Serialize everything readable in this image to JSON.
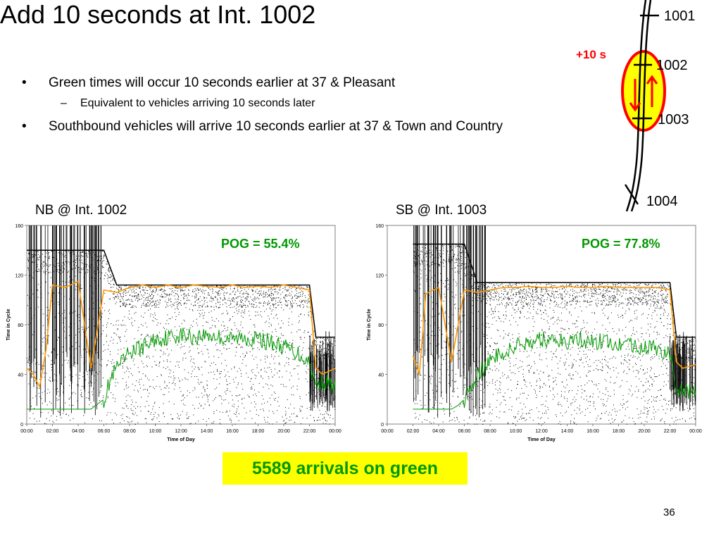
{
  "slide": {
    "title": "Add 10 seconds at Int. 1002",
    "bullets": [
      {
        "text": "Green times will occur 10 seconds earlier at 37 & Pleasant",
        "marker": "•"
      },
      {
        "text": "Equivalent to vehicles arriving 10 seconds later",
        "marker": "–"
      },
      {
        "text": "Southbound vehicles will arrive 10 seconds earlier at 37 & Town and Country",
        "marker": "•"
      }
    ],
    "arrivals_text": "5589 arrivals on green",
    "page_number": "36"
  },
  "diagram": {
    "offset_label": "+10 s",
    "intersections": [
      "1001",
      "1002",
      "1003",
      "1004"
    ],
    "colors": {
      "highlight_fill": "#ffff00",
      "highlight_stroke": "#ff0000",
      "arrow": "#ff0000"
    },
    "icons": [
      "up-arrow-icon",
      "down-arrow-icon"
    ]
  },
  "chart_data": [
    {
      "type": "scatter",
      "title": "NB @ Int. 1002",
      "annotation": "POG = 55.4%",
      "xlabel": "Time of Day",
      "ylabel": "Time in Cycle",
      "x_ticks": [
        "00:00",
        "02:00",
        "04:00",
        "06:00",
        "08:00",
        "10:00",
        "12:00",
        "14:00",
        "16:00",
        "18:00",
        "20:00",
        "22:00",
        "00:00"
      ],
      "y_ticks": [
        "0",
        "40",
        "80",
        "120",
        "160"
      ],
      "xlim": [
        0,
        24
      ],
      "ylim": [
        0,
        160
      ],
      "colors": {
        "arrivals": "#000000",
        "green_start": "#009900",
        "yellow_end": "#ff9900"
      },
      "green_start": [
        [
          0,
          12
        ],
        [
          0.5,
          12
        ],
        [
          1,
          12
        ],
        [
          1.5,
          12
        ],
        [
          2,
          12
        ],
        [
          2.5,
          12
        ],
        [
          3,
          12
        ],
        [
          3.5,
          12
        ],
        [
          4,
          12
        ],
        [
          4.5,
          12
        ],
        [
          5,
          12
        ],
        [
          6,
          20
        ],
        [
          6.5,
          35
        ],
        [
          7,
          45
        ],
        [
          7.5,
          50
        ],
        [
          8,
          58
        ],
        [
          9,
          62
        ],
        [
          10,
          68
        ],
        [
          11,
          70
        ],
        [
          12,
          72
        ],
        [
          13,
          70
        ],
        [
          14,
          72
        ],
        [
          15,
          70
        ],
        [
          16,
          68
        ],
        [
          17,
          70
        ],
        [
          18,
          68
        ],
        [
          19,
          66
        ],
        [
          20,
          62
        ],
        [
          21,
          58
        ],
        [
          22,
          50
        ],
        [
          22.5,
          30
        ],
        [
          23,
          35
        ],
        [
          24,
          30
        ]
      ],
      "yellow_end": [
        [
          0,
          45
        ],
        [
          0.5,
          40
        ],
        [
          1,
          30
        ],
        [
          1.5,
          60
        ],
        [
          2,
          112
        ],
        [
          3,
          110
        ],
        [
          4,
          115
        ],
        [
          5,
          45
        ],
        [
          6,
          108
        ],
        [
          7,
          106
        ],
        [
          8,
          110
        ],
        [
          9,
          112
        ],
        [
          10,
          110
        ],
        [
          11,
          112
        ],
        [
          12,
          110
        ],
        [
          13,
          112
        ],
        [
          14,
          111
        ],
        [
          15,
          110
        ],
        [
          16,
          112
        ],
        [
          17,
          110
        ],
        [
          18,
          111
        ],
        [
          19,
          110
        ],
        [
          20,
          112
        ],
        [
          21,
          110
        ],
        [
          22,
          108
        ],
        [
          22.5,
          45
        ],
        [
          23,
          40
        ],
        [
          24,
          45
        ]
      ],
      "cycle_length": [
        [
          0,
          140
        ],
        [
          6,
          140
        ],
        [
          7,
          112
        ],
        [
          22,
          112
        ],
        [
          22.5,
          70
        ],
        [
          24,
          70
        ]
      ]
    },
    {
      "type": "scatter",
      "title": "SB @ Int. 1003",
      "annotation": "POG = 77.8%",
      "xlabel": "Time of Day",
      "ylabel": "Time in Cycle",
      "x_ticks": [
        "00:00",
        "02:00",
        "04:00",
        "06:00",
        "08:00",
        "10:00",
        "12:00",
        "14:00",
        "16:00",
        "18:00",
        "20:00",
        "22:00",
        "00:00"
      ],
      "y_ticks": [
        "0",
        "40",
        "80",
        "120",
        "160"
      ],
      "xlim": [
        0,
        24
      ],
      "ylim": [
        0,
        160
      ],
      "colors": {
        "arrivals": "#000000",
        "green_start": "#009900",
        "yellow_end": "#ff9900"
      },
      "green_start": [
        [
          2,
          12
        ],
        [
          2.5,
          12
        ],
        [
          3,
          12
        ],
        [
          3.5,
          12
        ],
        [
          4,
          12
        ],
        [
          4.5,
          12
        ],
        [
          5,
          12
        ],
        [
          5.5,
          15
        ],
        [
          6,
          20
        ],
        [
          6.5,
          30
        ],
        [
          7,
          40
        ],
        [
          7.5,
          45
        ],
        [
          8,
          50
        ],
        [
          9,
          58
        ],
        [
          10,
          62
        ],
        [
          11,
          66
        ],
        [
          12,
          68
        ],
        [
          13,
          68
        ],
        [
          14,
          67
        ],
        [
          15,
          68
        ],
        [
          16,
          66
        ],
        [
          17,
          67
        ],
        [
          18,
          66
        ],
        [
          19,
          64
        ],
        [
          20,
          62
        ],
        [
          21,
          60
        ],
        [
          22,
          58
        ],
        [
          22.5,
          30
        ],
        [
          23,
          25
        ],
        [
          24,
          28
        ]
      ],
      "yellow_end": [
        [
          2,
          55
        ],
        [
          2.5,
          40
        ],
        [
          3,
          105
        ],
        [
          4,
          110
        ],
        [
          5,
          50
        ],
        [
          6,
          108
        ],
        [
          7,
          106
        ],
        [
          8,
          108
        ],
        [
          9,
          110
        ],
        [
          10,
          110
        ],
        [
          11,
          111
        ],
        [
          12,
          110
        ],
        [
          13,
          110
        ],
        [
          14,
          111
        ],
        [
          15,
          110
        ],
        [
          16,
          110
        ],
        [
          17,
          111
        ],
        [
          18,
          110
        ],
        [
          19,
          110
        ],
        [
          20,
          110
        ],
        [
          21,
          110
        ],
        [
          22,
          108
        ],
        [
          22.5,
          50
        ],
        [
          23,
          45
        ],
        [
          24,
          48
        ]
      ],
      "cycle_length": [
        [
          2,
          145
        ],
        [
          6,
          145
        ],
        [
          7,
          114
        ],
        [
          22,
          114
        ],
        [
          22.5,
          70
        ],
        [
          24,
          70
        ]
      ]
    }
  ]
}
